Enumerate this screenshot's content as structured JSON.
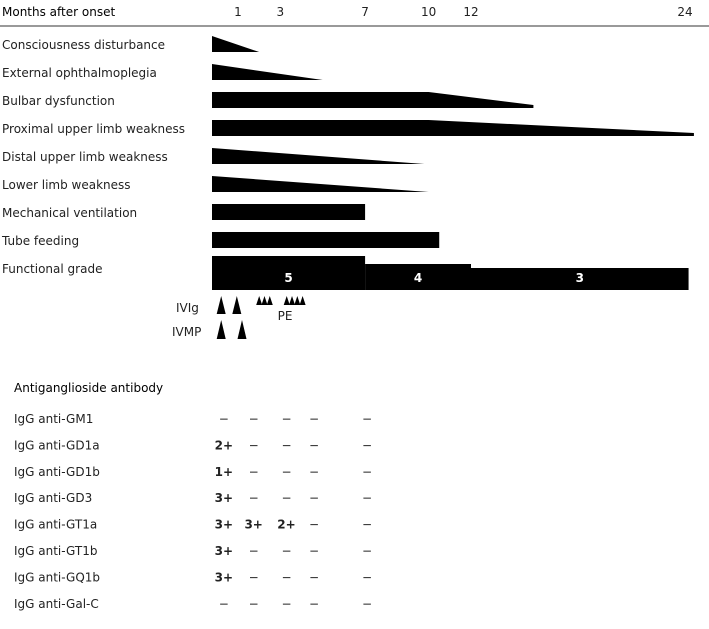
{
  "header": {
    "axis_label": "Months after onset",
    "ticks": [
      {
        "label": "1",
        "month": 1
      },
      {
        "label": "3",
        "month": 3
      },
      {
        "label": "7",
        "month": 7
      },
      {
        "label": "10",
        "month": 10
      },
      {
        "label": "12",
        "month": 12
      },
      {
        "label": "24",
        "month": 24
      }
    ]
  },
  "rows": [
    {
      "label": "Consciousness disturbance",
      "shape": "wedge",
      "end_month": 2.0
    },
    {
      "label": "External ophthalmoplegia",
      "shape": "wedge",
      "end_month": 5.0
    },
    {
      "label": "Bulbar dysfunction",
      "shape": "plateau_then_taper",
      "plateau_end_month": 10.0,
      "end_month": 15.5
    },
    {
      "label": "Proximal upper limb weakness",
      "shape": "plateau_then_taper",
      "plateau_end_month": 10.0,
      "end_month": 24.5
    },
    {
      "label": "Distal upper limb weakness",
      "shape": "wedge",
      "end_month": 9.8
    },
    {
      "label": "Lower limb weakness",
      "shape": "wedge",
      "end_month": 10.0
    },
    {
      "label": "Mechanical ventilation",
      "shape": "bar",
      "end_month": 7.0
    },
    {
      "label": "Tube feeding",
      "shape": "bar",
      "end_month": 10.5
    },
    {
      "label": "Functional grade",
      "shape": "steps",
      "steps": [
        {
          "grade": "5",
          "start_month": 0,
          "end_month": 7.0
        },
        {
          "grade": "4",
          "start_month": 7.0,
          "end_month": 12.0
        },
        {
          "grade": "3",
          "start_month": 12.0,
          "end_month": 24.2
        }
      ]
    }
  ],
  "treatments": {
    "ivig": {
      "label": "IVIg",
      "months": [
        0.2,
        0.8
      ]
    },
    "ivmp": {
      "label": "IVMP",
      "months": [
        0.2,
        1.0
      ]
    },
    "pe": {
      "label": "PE",
      "months": [
        2.0,
        2.25,
        2.5,
        3.3,
        3.55,
        3.8,
        4.05
      ]
    }
  },
  "antibodies": {
    "heading": "Antiganglioside antibody",
    "columns_months": [
      0.3,
      1.55,
      3.1,
      4.4,
      6.9
    ],
    "rows": [
      {
        "name": "IgG anti-GM1",
        "values": [
          "−",
          "−",
          "−",
          "−",
          "−"
        ]
      },
      {
        "name": "IgG anti-GD1a",
        "values": [
          "2+",
          "−",
          "−",
          "−",
          "−"
        ]
      },
      {
        "name": "IgG anti-GD1b",
        "values": [
          "1+",
          "−",
          "−",
          "−",
          "−"
        ]
      },
      {
        "name": "IgG anti-GD3",
        "values": [
          "3+",
          "−",
          "−",
          "−",
          "−"
        ]
      },
      {
        "name": "IgG anti-GT1a",
        "values": [
          "3+",
          "3+",
          "2+",
          "−",
          "−"
        ]
      },
      {
        "name": "IgG anti-GT1b",
        "values": [
          "3+",
          "−",
          "−",
          "−",
          "−"
        ]
      },
      {
        "name": "IgG anti-GQ1b",
        "values": [
          "3+",
          "−",
          "−",
          "−",
          "−"
        ]
      },
      {
        "name": "IgG anti-Gal-C",
        "values": [
          "−",
          "−",
          "−",
          "−",
          "−"
        ]
      }
    ]
  },
  "colors": {
    "bar": "#000000",
    "text": "#222222",
    "rule": "#333333",
    "grade_text": "#ffffff"
  }
}
